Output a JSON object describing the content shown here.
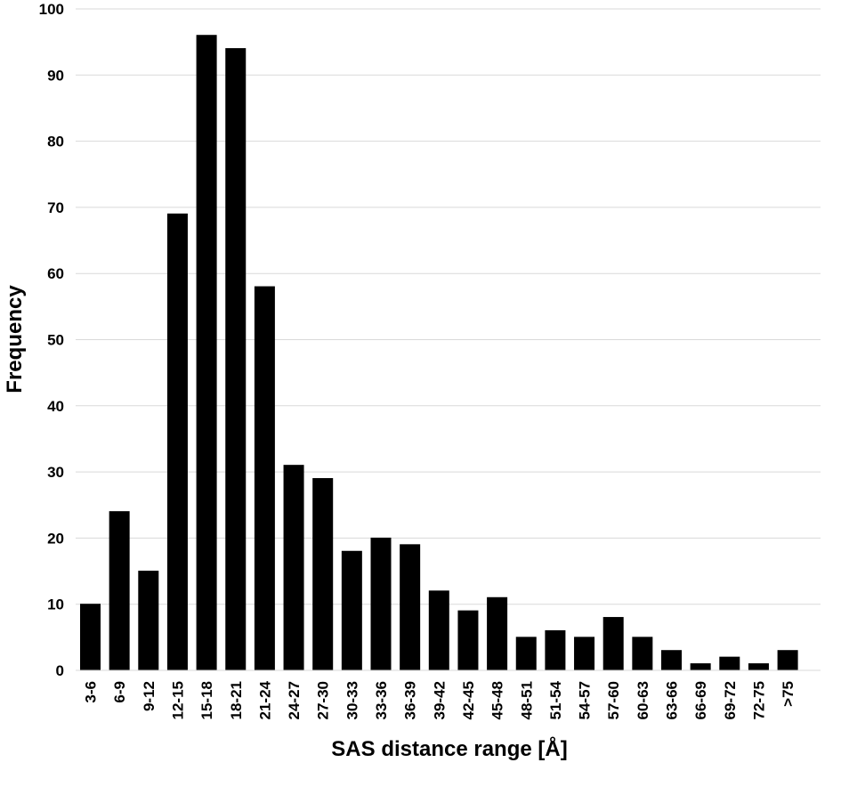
{
  "chart_data": {
    "type": "bar",
    "title": "",
    "xlabel": "SAS distance range [Å]",
    "ylabel": "Frequency",
    "ylim": [
      0,
      100
    ],
    "yticks": [
      "0",
      "10",
      "20",
      "30",
      "40",
      "50",
      "60",
      "70",
      "80",
      "90",
      "100"
    ],
    "grid": true,
    "categories": [
      "3-6",
      "6-9",
      "9-12",
      "12-15",
      "15-18",
      "18-21",
      "21-24",
      "24-27",
      "27-30",
      "30-33",
      "33-36",
      "36-39",
      "39-42",
      "42-45",
      "45-48",
      "48-51",
      "51-54",
      "54-57",
      "57-60",
      "60-63",
      "63-66",
      "66-69",
      "69-72",
      "72-75",
      ">75"
    ],
    "values": [
      10,
      24,
      15,
      69,
      96,
      94,
      58,
      31,
      29,
      18,
      20,
      19,
      12,
      9,
      11,
      5,
      6,
      5,
      8,
      5,
      3,
      1,
      2,
      1,
      3
    ],
    "bar_color": "#000000"
  }
}
